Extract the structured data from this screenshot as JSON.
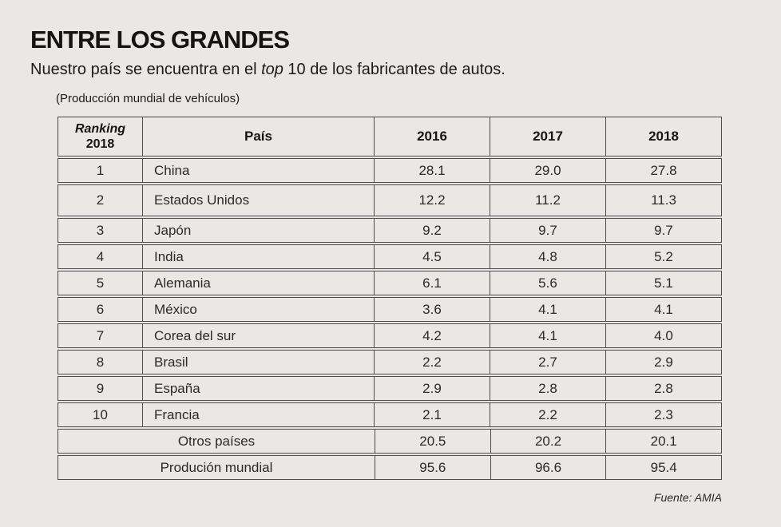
{
  "page": {
    "background": "#e9e8e5",
    "border_color": "#4b4b4d",
    "text_color": "#222222"
  },
  "header": {
    "title": "ENTRE LOS GRANDES",
    "subtitle_pre": "Nuestro país se encuentra en el ",
    "subtitle_italic": "top",
    "subtitle_post": " 10 de los fabricantes de autos.",
    "unit_note": "(Producción mundial de vehículos)"
  },
  "table": {
    "header": {
      "rank_line1": "Ranking",
      "rank_line2": "2018",
      "country": "País",
      "y2016": "2016",
      "y2017": "2017",
      "y2018": "2018"
    },
    "rows": [
      {
        "rank": "1",
        "country": "China",
        "y2016": "28.1",
        "y2017": "29.0",
        "y2018": "27.8"
      },
      {
        "rank": "2",
        "country": "Estados Unidos",
        "y2016": "12.2",
        "y2017": "11.2",
        "y2018": "11.3"
      },
      {
        "rank": "3",
        "country": "Japón",
        "y2016": "9.2",
        "y2017": "9.7",
        "y2018": "9.7"
      },
      {
        "rank": "4",
        "country": "India",
        "y2016": "4.5",
        "y2017": "4.8",
        "y2018": "5.2"
      },
      {
        "rank": "5",
        "country": "Alemania",
        "y2016": "6.1",
        "y2017": "5.6",
        "y2018": "5.1"
      },
      {
        "rank": "6",
        "country": "México",
        "y2016": "3.6",
        "y2017": "4.1",
        "y2018": "4.1"
      },
      {
        "rank": "7",
        "country": "Corea del sur",
        "y2016": "4.2",
        "y2017": "4.1",
        "y2018": "4.0"
      },
      {
        "rank": "8",
        "country": "Brasil",
        "y2016": "2.2",
        "y2017": "2.7",
        "y2018": "2.9"
      },
      {
        "rank": "9",
        "country": "España",
        "y2016": "2.9",
        "y2017": "2.8",
        "y2018": "2.8"
      },
      {
        "rank": "10",
        "country": "Francia",
        "y2016": "2.1",
        "y2017": "2.2",
        "y2018": "2.3"
      }
    ],
    "summary": [
      {
        "label": "Otros países",
        "y2016": "20.5",
        "y2017": "20.2",
        "y2018": "20.1"
      },
      {
        "label": "Produción mundial",
        "y2016": "95.6",
        "y2017": "96.6",
        "y2018": "95.4"
      }
    ]
  },
  "footer": {
    "source": "Fuente: AMIA"
  },
  "chart_data": {
    "type": "table",
    "title": "ENTRE LOS GRANDES",
    "subtitle": "Nuestro país se encuentra en el top 10 de los fabricantes de autos.",
    "unit_note": "(Producción mundial de vehículos)",
    "columns": [
      "Ranking 2018",
      "País",
      "2016",
      "2017",
      "2018"
    ],
    "rows": [
      [
        1,
        "China",
        28.1,
        29.0,
        27.8
      ],
      [
        2,
        "Estados Unidos",
        12.2,
        11.2,
        11.3
      ],
      [
        3,
        "Japón",
        9.2,
        9.7,
        9.7
      ],
      [
        4,
        "India",
        4.5,
        4.8,
        5.2
      ],
      [
        5,
        "Alemania",
        6.1,
        5.6,
        5.1
      ],
      [
        6,
        "México",
        3.6,
        4.1,
        4.1
      ],
      [
        7,
        "Corea del sur",
        4.2,
        4.1,
        4.0
      ],
      [
        8,
        "Brasil",
        2.2,
        2.7,
        2.9
      ],
      [
        9,
        "España",
        2.9,
        2.8,
        2.8
      ],
      [
        10,
        "Francia",
        2.1,
        2.2,
        2.3
      ],
      [
        null,
        "Otros países",
        20.5,
        20.2,
        20.1
      ],
      [
        null,
        "Produción mundial",
        95.6,
        96.6,
        95.4
      ]
    ],
    "source": "Fuente: AMIA"
  }
}
